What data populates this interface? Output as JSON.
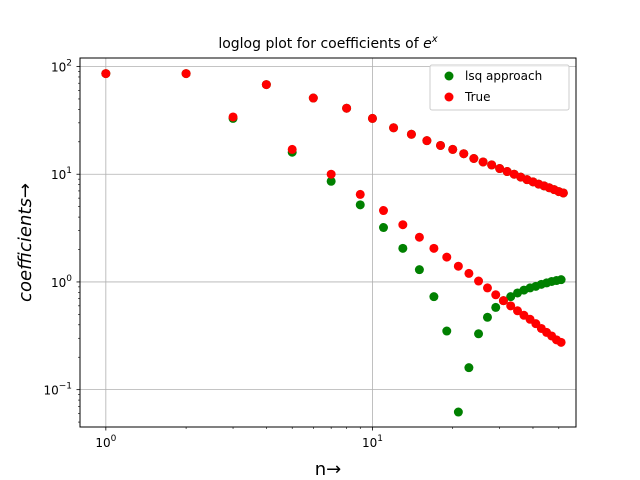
{
  "chart_data": {
    "type": "scatter",
    "title": "loglog plot for coefficients of e^x",
    "title_main": "loglog plot for coefficients of ",
    "title_base": "e",
    "title_exp": "x",
    "xlabel": "n→",
    "ylabel": "coefficients→",
    "xscale": "log",
    "yscale": "log",
    "xlim": [
      0.8,
      58
    ],
    "ylim": [
      0.045,
      120
    ],
    "x_ticks": [
      {
        "value": 1,
        "base": "10",
        "exp": "0"
      },
      {
        "value": 10,
        "base": "10",
        "exp": "1"
      }
    ],
    "y_ticks": [
      {
        "value": 0.1,
        "base": "10",
        "exp": "−1"
      },
      {
        "value": 1,
        "base": "10",
        "exp": "0"
      },
      {
        "value": 10,
        "base": "10",
        "exp": "1"
      },
      {
        "value": 100,
        "base": "10",
        "exp": "2"
      }
    ],
    "grid": true,
    "legend_position": "top-right",
    "series": [
      {
        "name": "lsq approach",
        "color": "#008000",
        "points": [
          [
            1,
            86
          ],
          [
            2,
            86
          ],
          [
            3,
            33
          ],
          [
            4,
            68
          ],
          [
            5,
            16
          ],
          [
            6,
            51
          ],
          [
            7,
            8.6
          ],
          [
            8,
            41
          ],
          [
            9,
            5.2
          ],
          [
            10,
            33
          ],
          [
            11,
            3.2
          ],
          [
            12,
            27
          ],
          [
            13,
            2.05
          ],
          [
            14,
            23.5
          ],
          [
            15,
            1.3
          ],
          [
            16,
            20.5
          ],
          [
            17,
            0.73
          ],
          [
            18,
            18.5
          ],
          [
            19,
            0.35
          ],
          [
            20,
            17
          ],
          [
            21,
            0.062
          ],
          [
            22,
            15.5
          ],
          [
            23,
            0.16
          ],
          [
            24,
            14
          ],
          [
            25,
            0.33
          ],
          [
            26,
            13
          ],
          [
            27,
            0.47
          ],
          [
            28,
            12.2
          ],
          [
            29,
            0.58
          ],
          [
            30,
            11.3
          ],
          [
            31,
            0.67
          ],
          [
            32,
            10.6
          ],
          [
            33,
            0.73
          ],
          [
            34,
            10
          ],
          [
            35,
            0.79
          ],
          [
            36,
            9.4
          ],
          [
            37,
            0.84
          ],
          [
            38,
            8.9
          ],
          [
            39,
            0.88
          ],
          [
            40,
            8.5
          ],
          [
            41,
            0.91
          ],
          [
            42,
            8.1
          ],
          [
            43,
            0.95
          ],
          [
            44,
            7.8
          ],
          [
            45,
            0.98
          ],
          [
            46,
            7.5
          ],
          [
            47,
            1.01
          ],
          [
            48,
            7.2
          ],
          [
            49,
            1.03
          ],
          [
            50,
            6.9
          ],
          [
            51,
            1.05
          ],
          [
            52,
            6.7
          ]
        ]
      },
      {
        "name": "True",
        "color": "#ff0000",
        "points": [
          [
            1,
            86
          ],
          [
            2,
            86
          ],
          [
            3,
            34
          ],
          [
            4,
            68
          ],
          [
            5,
            17
          ],
          [
            6,
            51
          ],
          [
            7,
            10
          ],
          [
            8,
            41
          ],
          [
            9,
            6.5
          ],
          [
            10,
            33
          ],
          [
            11,
            4.6
          ],
          [
            12,
            27
          ],
          [
            13,
            3.4
          ],
          [
            14,
            23.5
          ],
          [
            15,
            2.6
          ],
          [
            16,
            20.5
          ],
          [
            17,
            2.05
          ],
          [
            18,
            18.5
          ],
          [
            19,
            1.7
          ],
          [
            20,
            17
          ],
          [
            21,
            1.4
          ],
          [
            22,
            15.5
          ],
          [
            23,
            1.2
          ],
          [
            24,
            14
          ],
          [
            25,
            1.02
          ],
          [
            26,
            13
          ],
          [
            27,
            0.88
          ],
          [
            28,
            12.2
          ],
          [
            29,
            0.76
          ],
          [
            30,
            11.3
          ],
          [
            31,
            0.67
          ],
          [
            32,
            10.6
          ],
          [
            33,
            0.6
          ],
          [
            34,
            10
          ],
          [
            35,
            0.54
          ],
          [
            36,
            9.4
          ],
          [
            37,
            0.49
          ],
          [
            38,
            8.9
          ],
          [
            39,
            0.45
          ],
          [
            40,
            8.5
          ],
          [
            41,
            0.41
          ],
          [
            42,
            8.1
          ],
          [
            43,
            0.37
          ],
          [
            44,
            7.8
          ],
          [
            45,
            0.34
          ],
          [
            46,
            7.5
          ],
          [
            47,
            0.315
          ],
          [
            48,
            7.2
          ],
          [
            49,
            0.29
          ],
          [
            50,
            6.9
          ],
          [
            51,
            0.275
          ],
          [
            52,
            6.7
          ]
        ]
      }
    ]
  }
}
